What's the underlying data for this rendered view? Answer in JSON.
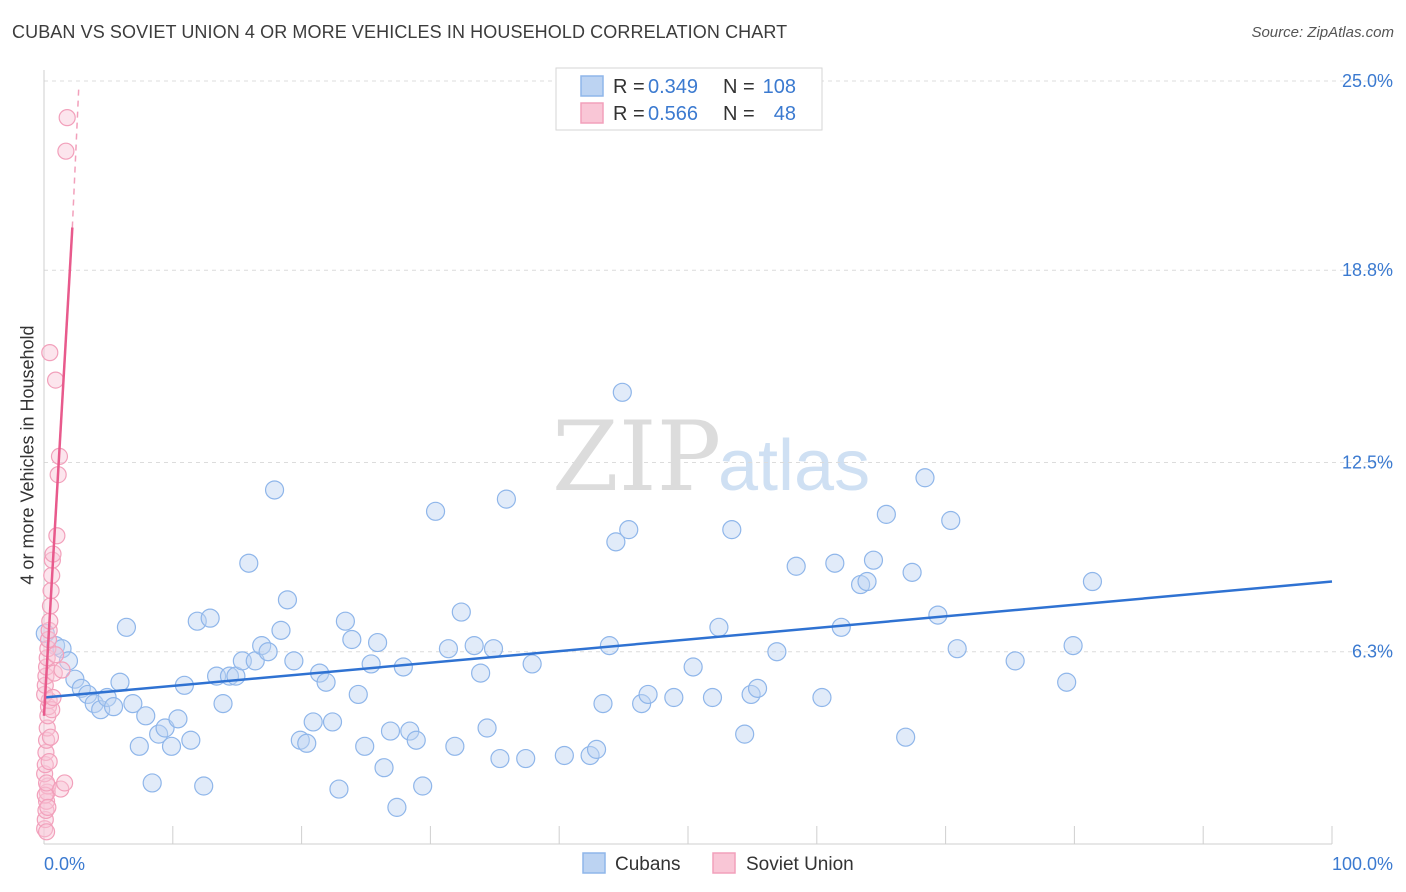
{
  "header": {
    "title": "CUBAN VS SOVIET UNION 4 OR MORE VEHICLES IN HOUSEHOLD CORRELATION CHART",
    "source": "Source: ZipAtlas.com"
  },
  "watermark": {
    "zip": "ZIP",
    "atlas": "atlas"
  },
  "legend": {
    "rows": [
      {
        "r_label": "R =",
        "r_value": "0.349",
        "n_label": "N =",
        "n_value": "108"
      },
      {
        "r_label": "R =",
        "r_value": "0.566",
        "n_label": "N =",
        "n_value": "48"
      }
    ]
  },
  "chart_data": {
    "type": "scatter",
    "title": "CUBAN VS SOVIET UNION 4 OR MORE VEHICLES IN HOUSEHOLD CORRELATION CHART",
    "xlabel": "",
    "ylabel": "4 or more Vehicles in Household",
    "xlim": [
      0,
      100
    ],
    "ylim": [
      0,
      25
    ],
    "x_tick_labels": [
      "0.0%",
      "100.0%"
    ],
    "y_ticks": [
      6.3,
      12.5,
      18.8,
      25.0
    ],
    "y_tick_labels": [
      "6.3%",
      "12.5%",
      "18.8%",
      "25.0%"
    ],
    "colors": {
      "cubans": "#8fb6ea",
      "cubans_line": "#2f72d2",
      "soviet": "#f2a0bb",
      "soviet_line": "#e85a8c"
    },
    "series": [
      {
        "name": "Cubans",
        "r": 0.349,
        "n": 108,
        "trend": {
          "x0": 0,
          "y0": 4.8,
          "x1": 100,
          "y1": 8.6
        },
        "points": [
          [
            0.1,
            6.9
          ],
          [
            0.9,
            6.5
          ],
          [
            1.4,
            6.4
          ],
          [
            1.9,
            6.0
          ],
          [
            2.4,
            5.4
          ],
          [
            2.9,
            5.1
          ],
          [
            3.4,
            4.9
          ],
          [
            3.9,
            4.6
          ],
          [
            4.4,
            4.4
          ],
          [
            4.9,
            4.8
          ],
          [
            5.4,
            4.5
          ],
          [
            5.9,
            5.3
          ],
          [
            6.4,
            7.1
          ],
          [
            6.9,
            4.6
          ],
          [
            7.4,
            3.2
          ],
          [
            7.9,
            4.2
          ],
          [
            8.4,
            2.0
          ],
          [
            8.9,
            3.6
          ],
          [
            9.4,
            3.8
          ],
          [
            9.9,
            3.2
          ],
          [
            10.4,
            4.1
          ],
          [
            10.9,
            5.2
          ],
          [
            11.4,
            3.4
          ],
          [
            11.9,
            7.3
          ],
          [
            12.4,
            1.9
          ],
          [
            12.9,
            7.4
          ],
          [
            13.4,
            5.5
          ],
          [
            13.9,
            4.6
          ],
          [
            14.4,
            5.5
          ],
          [
            14.9,
            5.5
          ],
          [
            15.4,
            6.0
          ],
          [
            15.9,
            9.2
          ],
          [
            16.4,
            6.0
          ],
          [
            16.9,
            6.5
          ],
          [
            17.4,
            6.3
          ],
          [
            17.9,
            11.6
          ],
          [
            18.4,
            7.0
          ],
          [
            18.9,
            8.0
          ],
          [
            19.4,
            6.0
          ],
          [
            19.9,
            3.4
          ],
          [
            20.4,
            3.3
          ],
          [
            20.9,
            4.0
          ],
          [
            21.4,
            5.6
          ],
          [
            21.9,
            5.3
          ],
          [
            22.4,
            4.0
          ],
          [
            22.9,
            1.8
          ],
          [
            23.4,
            7.3
          ],
          [
            23.9,
            6.7
          ],
          [
            24.4,
            4.9
          ],
          [
            24.9,
            3.2
          ],
          [
            25.4,
            5.9
          ],
          [
            25.9,
            6.6
          ],
          [
            26.4,
            2.5
          ],
          [
            26.9,
            3.7
          ],
          [
            27.4,
            1.2
          ],
          [
            27.9,
            5.8
          ],
          [
            28.4,
            3.7
          ],
          [
            28.9,
            3.4
          ],
          [
            29.4,
            1.9
          ],
          [
            30.4,
            10.9
          ],
          [
            31.4,
            6.4
          ],
          [
            31.9,
            3.2
          ],
          [
            32.4,
            7.6
          ],
          [
            33.4,
            6.5
          ],
          [
            33.9,
            5.6
          ],
          [
            34.4,
            3.8
          ],
          [
            34.9,
            6.4
          ],
          [
            35.4,
            2.8
          ],
          [
            35.9,
            11.3
          ],
          [
            37.4,
            2.8
          ],
          [
            37.9,
            5.9
          ],
          [
            40.4,
            2.9
          ],
          [
            42.4,
            2.9
          ],
          [
            42.9,
            3.1
          ],
          [
            43.4,
            4.6
          ],
          [
            43.9,
            6.5
          ],
          [
            44.4,
            9.9
          ],
          [
            44.9,
            14.8
          ],
          [
            45.4,
            10.3
          ],
          [
            46.4,
            4.6
          ],
          [
            46.9,
            4.9
          ],
          [
            48.9,
            4.8
          ],
          [
            50.4,
            5.8
          ],
          [
            51.9,
            4.8
          ],
          [
            52.4,
            7.1
          ],
          [
            53.4,
            10.3
          ],
          [
            54.4,
            3.6
          ],
          [
            54.9,
            4.9
          ],
          [
            55.4,
            5.1
          ],
          [
            56.9,
            6.3
          ],
          [
            58.4,
            9.1
          ],
          [
            60.4,
            4.8
          ],
          [
            61.4,
            9.2
          ],
          [
            61.9,
            7.1
          ],
          [
            63.4,
            8.5
          ],
          [
            63.9,
            8.6
          ],
          [
            64.4,
            9.3
          ],
          [
            65.4,
            10.8
          ],
          [
            66.9,
            3.5
          ],
          [
            67.4,
            8.9
          ],
          [
            68.4,
            12.0
          ],
          [
            69.4,
            7.5
          ],
          [
            70.4,
            10.6
          ],
          [
            70.9,
            6.4
          ],
          [
            75.4,
            6.0
          ],
          [
            79.4,
            5.3
          ],
          [
            79.9,
            6.5
          ],
          [
            81.4,
            8.6
          ]
        ]
      },
      {
        "name": "Soviet Union",
        "r": 0.566,
        "n": 48,
        "trend": {
          "x0": 0,
          "y0": 4.2,
          "x1": 2.2,
          "y1": 20.2
        },
        "trend_extension": {
          "x0": 2.2,
          "y0": 20.2,
          "x1": 2.7,
          "y1": 24.8
        },
        "points": [
          [
            0.05,
            0.5
          ],
          [
            0.1,
            0.8
          ],
          [
            0.15,
            1.1
          ],
          [
            0.2,
            1.4
          ],
          [
            0.25,
            1.7
          ],
          [
            0.3,
            1.9
          ],
          [
            0.05,
            2.3
          ],
          [
            0.1,
            2.6
          ],
          [
            0.15,
            3.0
          ],
          [
            0.2,
            3.4
          ],
          [
            0.25,
            3.8
          ],
          [
            0.3,
            4.2
          ],
          [
            0.35,
            4.5
          ],
          [
            0.4,
            4.7
          ],
          [
            0.05,
            4.9
          ],
          [
            0.1,
            5.2
          ],
          [
            0.15,
            5.5
          ],
          [
            0.2,
            5.8
          ],
          [
            0.25,
            6.1
          ],
          [
            0.3,
            6.4
          ],
          [
            0.35,
            6.7
          ],
          [
            0.4,
            7.0
          ],
          [
            0.45,
            7.3
          ],
          [
            0.5,
            7.8
          ],
          [
            0.55,
            8.3
          ],
          [
            0.6,
            8.8
          ],
          [
            0.65,
            9.3
          ],
          [
            0.7,
            9.5
          ],
          [
            0.1,
            1.6
          ],
          [
            0.2,
            2.0
          ],
          [
            0.4,
            2.7
          ],
          [
            0.5,
            3.5
          ],
          [
            0.6,
            4.4
          ],
          [
            0.7,
            4.8
          ],
          [
            0.8,
            5.6
          ],
          [
            0.9,
            6.2
          ],
          [
            1.0,
            10.1
          ],
          [
            1.1,
            12.1
          ],
          [
            1.2,
            12.7
          ],
          [
            0.45,
            16.1
          ],
          [
            0.9,
            15.2
          ],
          [
            1.4,
            5.7
          ],
          [
            1.3,
            1.8
          ],
          [
            1.6,
            2.0
          ],
          [
            1.7,
            22.7
          ],
          [
            1.8,
            23.8
          ],
          [
            0.2,
            0.4
          ],
          [
            0.3,
            1.2
          ]
        ]
      }
    ]
  },
  "bottom_legend": {
    "items": [
      {
        "label": "Cubans"
      },
      {
        "label": "Soviet Union"
      }
    ]
  }
}
